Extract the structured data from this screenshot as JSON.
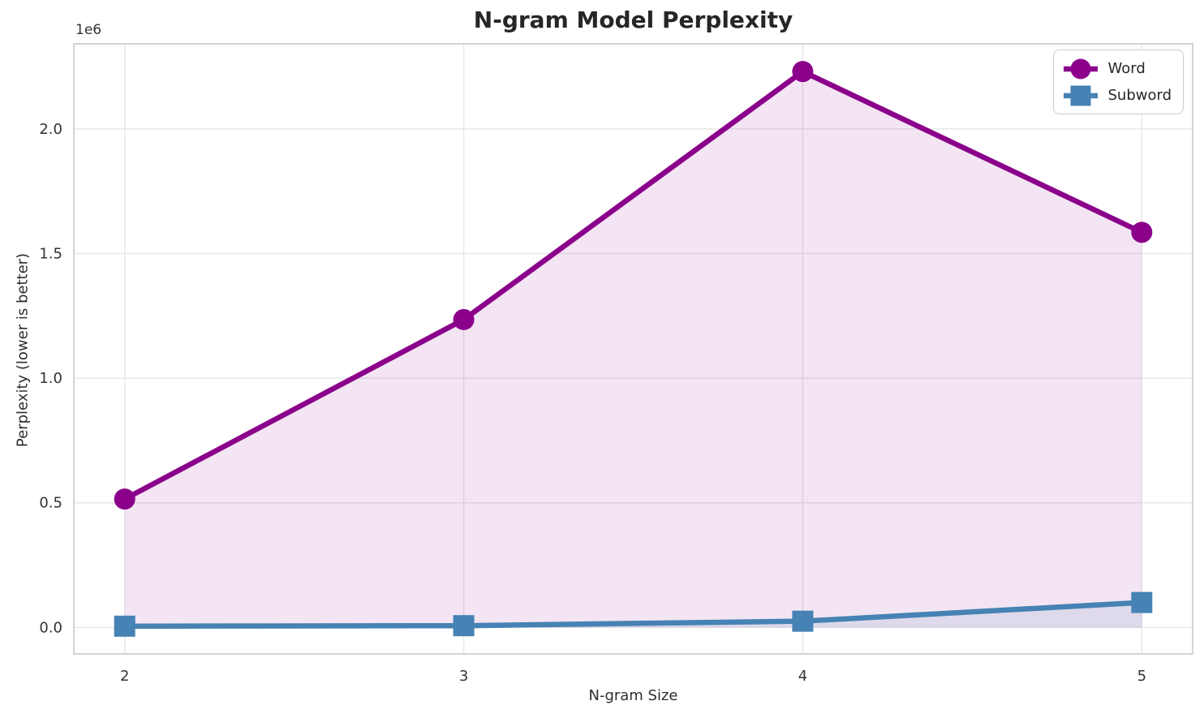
{
  "chart_data": {
    "type": "line",
    "title": "N-gram Model Perplexity",
    "xlabel": "N-gram Size",
    "ylabel": "Perplexity (lower is better)",
    "y_offset_label": "1e6",
    "x": [
      2,
      3,
      4,
      5
    ],
    "series": [
      {
        "name": "Word",
        "color": "#8B008B",
        "marker": "circle",
        "fill": true,
        "fill_alpha": 0.1,
        "values": [
          515000,
          1235000,
          2230000,
          1585000
        ]
      },
      {
        "name": "Subword",
        "color": "#4682B4",
        "marker": "square",
        "fill": true,
        "fill_alpha": 0.12,
        "values": [
          5000,
          7000,
          25000,
          100000
        ]
      }
    ],
    "xlim": [
      1.85,
      5.15
    ],
    "ylim": [
      -106250,
      2341250
    ],
    "xticks": [
      {
        "value": 2,
        "label": "2"
      },
      {
        "value": 3,
        "label": "3"
      },
      {
        "value": 4,
        "label": "4"
      },
      {
        "value": 5,
        "label": "5"
      }
    ],
    "yticks": [
      {
        "value": 0,
        "label": "0.0"
      },
      {
        "value": 500000,
        "label": "0.5"
      },
      {
        "value": 1000000,
        "label": "1.0"
      },
      {
        "value": 1500000,
        "label": "1.5"
      },
      {
        "value": 2000000,
        "label": "2.0"
      }
    ],
    "grid": true,
    "legend": {
      "position": "upper right"
    },
    "style": {
      "background": "#ffffff",
      "grid_color": "#e8e8e8",
      "spine_color": "#c9c9c9",
      "tick_color": "#333333",
      "title_color": "#262626",
      "line_width": 6.5,
      "marker_size": 13
    }
  }
}
